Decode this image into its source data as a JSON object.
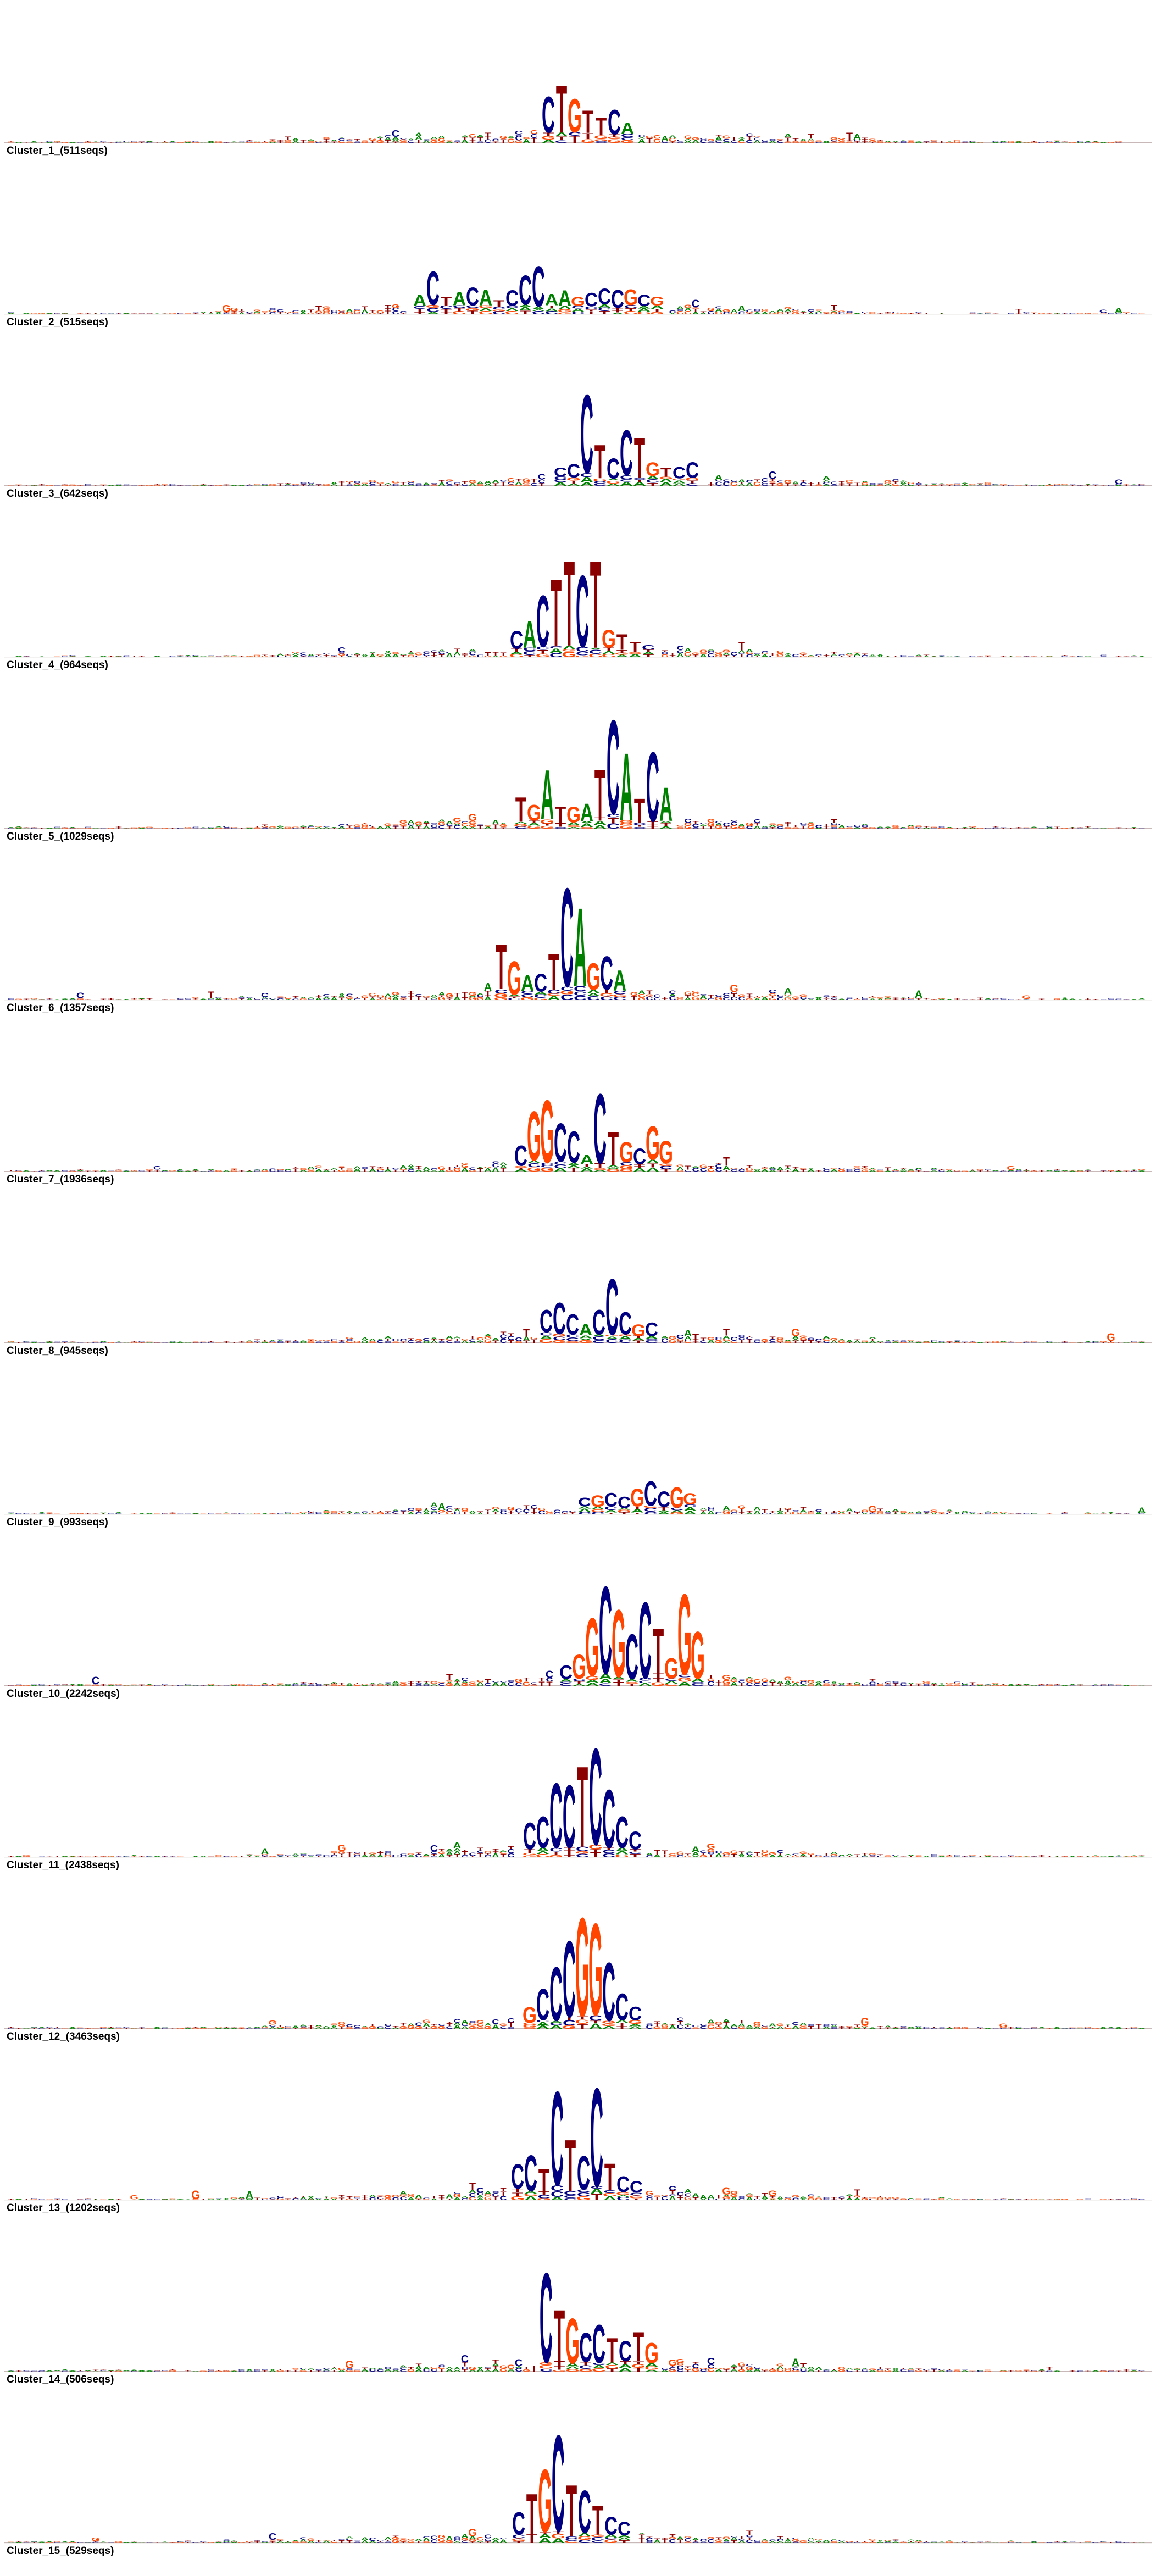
{
  "colors": {
    "A": "#008000",
    "C": "#000080",
    "G": "#FF4500",
    "T": "#8B0000"
  },
  "panels": [
    {
      "label": "Cluster_1_(511seqs)",
      "motif": [
        [
          "C",
          0.32
        ],
        [
          "T",
          0.42
        ],
        [
          "G",
          0.3
        ],
        [
          "T",
          0.2
        ],
        [
          "T",
          0.16
        ],
        [
          "C",
          0.22
        ],
        [
          "A",
          0.1
        ]
      ]
    },
    {
      "label": "Cluster_2_(515seqs)",
      "motif": [
        [
          "A",
          0.1
        ],
        [
          "C",
          0.3
        ],
        [
          "T",
          0.08
        ],
        [
          "A",
          0.12
        ],
        [
          "C",
          0.16
        ],
        [
          "A",
          0.14
        ],
        [
          "T",
          0.06
        ],
        [
          "C",
          0.14
        ],
        [
          "C",
          0.26
        ],
        [
          "C",
          0.36
        ],
        [
          "A",
          0.1
        ],
        [
          "A",
          0.14
        ],
        [
          "G",
          0.08
        ],
        [
          "C",
          0.12
        ],
        [
          "C",
          0.14
        ],
        [
          "C",
          0.16
        ],
        [
          "G",
          0.14
        ],
        [
          "C",
          0.1
        ],
        [
          "G",
          0.08
        ]
      ]
    },
    {
      "label": "Cluster_3_(642seqs)",
      "motif": [
        [
          "C",
          0.08
        ],
        [
          "C",
          0.12
        ],
        [
          "C",
          0.7
        ],
        [
          "T",
          0.3
        ],
        [
          "C",
          0.18
        ],
        [
          "C",
          0.4
        ],
        [
          "T",
          0.36
        ],
        [
          "G",
          0.12
        ],
        [
          "T",
          0.08
        ],
        [
          "C",
          0.1
        ],
        [
          "C",
          0.14
        ]
      ]
    },
    {
      "label": "Cluster_4_(964seqs)",
      "motif": [
        [
          "C",
          0.16
        ],
        [
          "A",
          0.24
        ],
        [
          "C",
          0.46
        ],
        [
          "T",
          0.6
        ],
        [
          "T",
          0.76
        ],
        [
          "C",
          0.64
        ],
        [
          "T",
          0.78
        ],
        [
          "G",
          0.16
        ],
        [
          "T",
          0.14
        ],
        [
          "T",
          0.06
        ],
        [
          "C",
          0.04
        ]
      ]
    },
    {
      "label": "Cluster_5_(1029seqs)",
      "motif": [
        [
          "T",
          0.22
        ],
        [
          "G",
          0.14
        ],
        [
          "A",
          0.44
        ],
        [
          "T",
          0.12
        ],
        [
          "G",
          0.14
        ],
        [
          "A",
          0.16
        ],
        [
          "T",
          0.42
        ],
        [
          "C",
          0.84
        ],
        [
          "A",
          0.6
        ],
        [
          "T",
          0.22
        ],
        [
          "C",
          0.62
        ],
        [
          "A",
          0.3
        ]
      ]
    },
    {
      "label": "Cluster_6_(1357seqs)",
      "motif": [
        [
          "T",
          0.4
        ],
        [
          "G",
          0.3
        ],
        [
          "A",
          0.14
        ],
        [
          "C",
          0.16
        ],
        [
          "T",
          0.32
        ],
        [
          "C",
          0.88
        ],
        [
          "A",
          0.7
        ],
        [
          "G",
          0.24
        ],
        [
          "C",
          0.3
        ],
        [
          "A",
          0.18
        ]
      ]
    },
    {
      "label": "Cluster_7_(1936seqs)",
      "motif": [
        [
          "C",
          0.18
        ],
        [
          "G",
          0.44
        ],
        [
          "G",
          0.56
        ],
        [
          "C",
          0.34
        ],
        [
          "C",
          0.28
        ],
        [
          "A",
          0.08
        ],
        [
          "C",
          0.62
        ],
        [
          "T",
          0.3
        ],
        [
          "G",
          0.18
        ],
        [
          "C",
          0.14
        ],
        [
          "G",
          0.3
        ],
        [
          "G",
          0.2
        ]
      ]
    },
    {
      "label": "Cluster_8_(945seqs)",
      "motif": [
        [
          "C",
          0.2
        ],
        [
          "C",
          0.28
        ],
        [
          "C",
          0.18
        ],
        [
          "A",
          0.1
        ],
        [
          "C",
          0.22
        ],
        [
          "C",
          0.5
        ],
        [
          "C",
          0.2
        ],
        [
          "G",
          0.1
        ],
        [
          "C",
          0.12
        ]
      ]
    },
    {
      "label": "Cluster_9_(993seqs)",
      "motif": [
        [
          "C",
          0.08
        ],
        [
          "G",
          0.1
        ],
        [
          "C",
          0.12
        ],
        [
          "C",
          0.1
        ],
        [
          "G",
          0.16
        ],
        [
          "C",
          0.22
        ],
        [
          "C",
          0.14
        ],
        [
          "G",
          0.18
        ],
        [
          "G",
          0.1
        ]
      ]
    },
    {
      "label": "Cluster_10_(2242seqs)",
      "motif": [
        [
          "C",
          0.12
        ],
        [
          "G",
          0.22
        ],
        [
          "G",
          0.52
        ],
        [
          "C",
          0.78
        ],
        [
          "G",
          0.6
        ],
        [
          "C",
          0.4
        ],
        [
          "C",
          0.68
        ],
        [
          "T",
          0.4
        ],
        [
          "G",
          0.18
        ],
        [
          "G",
          0.72
        ],
        [
          "G",
          0.42
        ]
      ]
    },
    {
      "label": "Cluster_11_(2438seqs)",
      "motif": [
        [
          "C",
          0.24
        ],
        [
          "C",
          0.28
        ],
        [
          "C",
          0.58
        ],
        [
          "C",
          0.56
        ],
        [
          "T",
          0.72
        ],
        [
          "C",
          0.86
        ],
        [
          "C",
          0.52
        ],
        [
          "C",
          0.28
        ],
        [
          "C",
          0.16
        ]
      ]
    },
    {
      "label": "Cluster_12_(3463seqs)",
      "motif": [
        [
          "G",
          0.14
        ],
        [
          "C",
          0.28
        ],
        [
          "C",
          0.48
        ],
        [
          "C",
          0.68
        ],
        [
          "G",
          0.88
        ],
        [
          "G",
          0.82
        ],
        [
          "C",
          0.52
        ],
        [
          "C",
          0.24
        ],
        [
          "C",
          0.12
        ]
      ]
    },
    {
      "label": "Cluster_13_(1202seqs)",
      "motif": [
        [
          "C",
          0.22
        ],
        [
          "C",
          0.32
        ],
        [
          "T",
          0.2
        ],
        [
          "C",
          0.84
        ],
        [
          "T",
          0.46
        ],
        [
          "C",
          0.3
        ],
        [
          "C",
          0.88
        ],
        [
          "T",
          0.24
        ],
        [
          "C",
          0.14
        ],
        [
          "C",
          0.1
        ]
      ]
    },
    {
      "label": "Cluster_14_(506seqs)",
      "motif": [
        [
          "C",
          0.8
        ],
        [
          "T",
          0.46
        ],
        [
          "G",
          0.4
        ],
        [
          "C",
          0.26
        ],
        [
          "C",
          0.34
        ],
        [
          "T",
          0.22
        ],
        [
          "C",
          0.18
        ],
        [
          "T",
          0.26
        ],
        [
          "G",
          0.18
        ]
      ]
    },
    {
      "label": "Cluster_15_(529seqs)",
      "motif": [
        [
          "C",
          0.2
        ],
        [
          "T",
          0.36
        ],
        [
          "G",
          0.56
        ],
        [
          "C",
          0.86
        ],
        [
          "T",
          0.46
        ],
        [
          "C",
          0.38
        ],
        [
          "T",
          0.26
        ],
        [
          "C",
          0.16
        ],
        [
          "C",
          0.12
        ]
      ]
    }
  ]
}
